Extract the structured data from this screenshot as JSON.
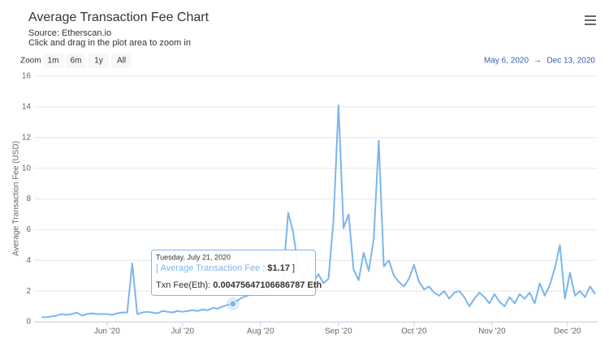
{
  "chart_data": {
    "type": "line",
    "title": "Average Transaction Fee Chart",
    "subtitle": "Source: Etherscan.io",
    "hint": "Click and drag in the plot area to zoom in",
    "zoom": {
      "label": "Zoom",
      "buttons": [
        "1m",
        "6m",
        "1y",
        "All"
      ]
    },
    "range": {
      "from": "May 6, 2020",
      "arrow": "→",
      "to": "Dec 13, 2020"
    },
    "y_label": "Average Transaction Fee (USD)",
    "x": [
      "2020-05-06",
      "2020-05-08",
      "2020-05-10",
      "2020-05-12",
      "2020-05-14",
      "2020-05-16",
      "2020-05-18",
      "2020-05-20",
      "2020-05-22",
      "2020-05-24",
      "2020-05-26",
      "2020-05-28",
      "2020-05-30",
      "2020-06-01",
      "2020-06-03",
      "2020-06-05",
      "2020-06-07",
      "2020-06-09",
      "2020-06-11",
      "2020-06-13",
      "2020-06-15",
      "2020-06-17",
      "2020-06-19",
      "2020-06-21",
      "2020-06-23",
      "2020-06-25",
      "2020-06-27",
      "2020-06-29",
      "2020-07-01",
      "2020-07-03",
      "2020-07-05",
      "2020-07-07",
      "2020-07-09",
      "2020-07-11",
      "2020-07-13",
      "2020-07-15",
      "2020-07-17",
      "2020-07-19",
      "2020-07-21",
      "2020-07-23",
      "2020-07-25",
      "2020-07-27",
      "2020-07-29",
      "2020-07-31",
      "2020-08-02",
      "2020-08-04",
      "2020-08-06",
      "2020-08-08",
      "2020-08-10",
      "2020-08-12",
      "2020-08-14",
      "2020-08-16",
      "2020-08-18",
      "2020-08-20",
      "2020-08-22",
      "2020-08-24",
      "2020-08-26",
      "2020-08-28",
      "2020-08-30",
      "2020-09-01",
      "2020-09-03",
      "2020-09-05",
      "2020-09-07",
      "2020-09-09",
      "2020-09-11",
      "2020-09-13",
      "2020-09-15",
      "2020-09-17",
      "2020-09-19",
      "2020-09-21",
      "2020-09-23",
      "2020-09-25",
      "2020-09-27",
      "2020-09-29",
      "2020-10-01",
      "2020-10-03",
      "2020-10-05",
      "2020-10-07",
      "2020-10-09",
      "2020-10-11",
      "2020-10-13",
      "2020-10-15",
      "2020-10-17",
      "2020-10-19",
      "2020-10-21",
      "2020-10-23",
      "2020-10-25",
      "2020-10-27",
      "2020-10-29",
      "2020-10-31",
      "2020-11-02",
      "2020-11-04",
      "2020-11-06",
      "2020-11-08",
      "2020-11-10",
      "2020-11-12",
      "2020-11-14",
      "2020-11-16",
      "2020-11-18",
      "2020-11-20",
      "2020-11-22",
      "2020-11-24",
      "2020-11-26",
      "2020-11-28",
      "2020-11-30",
      "2020-12-02",
      "2020-12-04",
      "2020-12-06",
      "2020-12-08",
      "2020-12-10",
      "2020-12-12"
    ],
    "series": [
      {
        "name": "Average Transaction Fee",
        "color": "#7cb5ec",
        "values": [
          0.3,
          0.3,
          0.35,
          0.4,
          0.5,
          0.45,
          0.5,
          0.6,
          0.4,
          0.5,
          0.55,
          0.5,
          0.5,
          0.5,
          0.45,
          0.55,
          0.6,
          0.6,
          3.8,
          0.5,
          0.6,
          0.65,
          0.6,
          0.55,
          0.7,
          0.65,
          0.6,
          0.7,
          0.65,
          0.7,
          0.75,
          0.7,
          0.8,
          0.75,
          0.9,
          0.85,
          1.0,
          1.1,
          1.17,
          1.4,
          1.6,
          1.7,
          1.9,
          2.0,
          1.8,
          2.1,
          2.3,
          2.1,
          3.0,
          7.1,
          5.8,
          3.5,
          2.8,
          3.6,
          2.6,
          3.1,
          2.5,
          2.8,
          6.6,
          14.1,
          6.1,
          7.0,
          3.4,
          2.7,
          4.5,
          3.3,
          5.4,
          11.8,
          3.6,
          4.0,
          3.0,
          2.6,
          2.3,
          2.8,
          3.7,
          2.6,
          2.1,
          2.3,
          1.9,
          1.7,
          2.0,
          1.5,
          1.9,
          2.0,
          1.6,
          1.0,
          1.5,
          1.9,
          1.6,
          1.2,
          1.8,
          1.3,
          1.0,
          1.6,
          1.2,
          1.8,
          1.5,
          1.9,
          1.2,
          2.5,
          1.7,
          2.4,
          3.5,
          5.0,
          1.5,
          3.2,
          1.7,
          2.0,
          1.6,
          2.3,
          1.8
        ]
      }
    ],
    "xlim": [
      "2020-05-03",
      "2020-12-13"
    ],
    "xticks": [
      {
        "value": "2020-06-01",
        "label": "Jun '20"
      },
      {
        "value": "2020-07-01",
        "label": "Jul '20"
      },
      {
        "value": "2020-08-01",
        "label": "Aug '20"
      },
      {
        "value": "2020-09-01",
        "label": "Sep '20"
      },
      {
        "value": "2020-10-01",
        "label": "Oct '20"
      },
      {
        "value": "2020-11-01",
        "label": "Nov '20"
      },
      {
        "value": "2020-12-01",
        "label": "Dec '20"
      }
    ],
    "ylim": [
      0,
      16
    ],
    "yticks": [
      0,
      2,
      4,
      6,
      8,
      10,
      12,
      14,
      16
    ],
    "grid": true,
    "tooltip": {
      "date": "Tuesday, July 21, 2020",
      "open": "[",
      "separator": ":",
      "value_label": "$1.17",
      "close": "]",
      "eth_label": "Txn Fee(Eth):",
      "eth_value": "0.00475647106686787 Eth"
    }
  }
}
